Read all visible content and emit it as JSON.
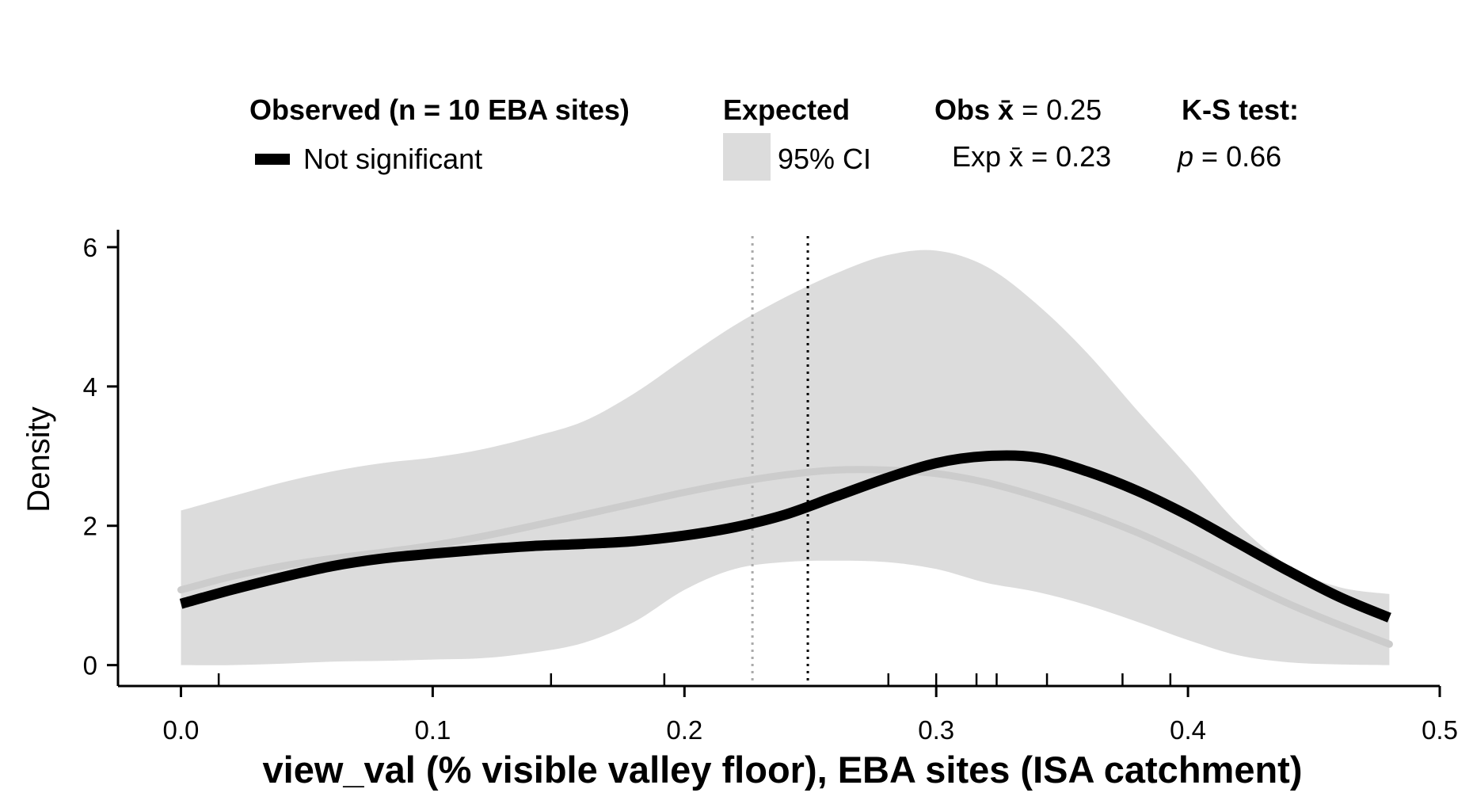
{
  "legend": {
    "observed_title": "Observed (n = 10 EBA sites)",
    "observed_entry": "Not significant",
    "expected_title": "Expected",
    "expected_entry": "95% CI",
    "obs_mean_label": "Obs x̄",
    "obs_mean_value": "= 0.25",
    "exp_mean_label": "Exp x̄",
    "exp_mean_value": "= 0.23",
    "ks_title": "K-S test:",
    "ks_p_symbol": "p",
    "ks_p_value": "= 0.66"
  },
  "colors": {
    "observed_line": "#000000",
    "expected_line": "#cccccc",
    "ci_band": "#dcdcdc",
    "exp_mean_line": "#aaaaaa",
    "obs_mean_line": "#000000"
  },
  "chart_data": {
    "type": "line",
    "xlabel": "view_val (% visible valley floor), EBA sites (ISA catchment)",
    "ylabel": "Density",
    "xlim": [
      -0.025,
      0.5
    ],
    "ylim": [
      -0.3,
      6.25
    ],
    "x_ticks": [
      0.0,
      0.1,
      0.2,
      0.3,
      0.4,
      0.5
    ],
    "x_tick_labels": [
      "0.0",
      "0.1",
      "0.2",
      "0.3",
      "0.4",
      "0.5"
    ],
    "y_ticks": [
      0,
      2,
      4,
      6
    ],
    "y_tick_labels": [
      "0",
      "2",
      "4",
      "6"
    ],
    "rug": [
      0.015,
      0.147,
      0.192,
      0.281,
      0.3,
      0.316,
      0.324,
      0.344,
      0.374,
      0.393
    ],
    "obs_mean": 0.249,
    "exp_mean": 0.227,
    "x": [
      0.0,
      0.02,
      0.04,
      0.06,
      0.08,
      0.1,
      0.12,
      0.14,
      0.16,
      0.18,
      0.2,
      0.22,
      0.24,
      0.26,
      0.28,
      0.3,
      0.32,
      0.34,
      0.36,
      0.38,
      0.4,
      0.42,
      0.44,
      0.46,
      0.48
    ],
    "series": [
      {
        "name": "Not significant",
        "values": [
          0.88,
          1.08,
          1.26,
          1.42,
          1.53,
          1.6,
          1.66,
          1.71,
          1.74,
          1.78,
          1.86,
          1.98,
          2.16,
          2.42,
          2.68,
          2.9,
          3.0,
          2.98,
          2.78,
          2.5,
          2.15,
          1.75,
          1.35,
          0.98,
          0.68
        ]
      },
      {
        "name": "Expected",
        "values": [
          1.08,
          1.27,
          1.42,
          1.53,
          1.62,
          1.72,
          1.85,
          2.0,
          2.16,
          2.32,
          2.48,
          2.62,
          2.73,
          2.8,
          2.8,
          2.75,
          2.62,
          2.42,
          2.18,
          1.9,
          1.57,
          1.22,
          0.88,
          0.58,
          0.3
        ]
      }
    ],
    "ci_lower": [
      0.0,
      0.0,
      0.02,
      0.05,
      0.06,
      0.08,
      0.1,
      0.18,
      0.32,
      0.62,
      1.08,
      1.38,
      1.48,
      1.5,
      1.48,
      1.38,
      1.18,
      1.05,
      0.86,
      0.62,
      0.36,
      0.14,
      0.04,
      0.01,
      0.0
    ],
    "ci_upper": [
      2.22,
      2.42,
      2.62,
      2.78,
      2.9,
      2.98,
      3.1,
      3.28,
      3.5,
      3.9,
      4.4,
      4.88,
      5.28,
      5.62,
      5.88,
      5.95,
      5.72,
      5.18,
      4.48,
      3.65,
      2.85,
      2.02,
      1.42,
      1.12,
      1.02
    ]
  }
}
